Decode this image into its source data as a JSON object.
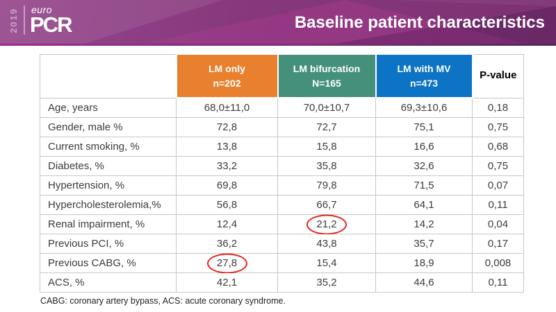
{
  "banner": {
    "year": "2019",
    "logo_euro": "euro",
    "logo_pcr": "PCR",
    "title": "Baseline patient characteristics"
  },
  "colors": {
    "banner_purple": "#87387D",
    "orange": "#E8802E",
    "teal": "#44907B",
    "blue": "#0D73C4",
    "highlight_red": "#E2231A",
    "grid_gray": "#C6C6C6"
  },
  "table": {
    "header": {
      "col1": "",
      "groups": [
        {
          "label": "LM only",
          "sub": "n=202",
          "color": "#E8802E"
        },
        {
          "label": "LM bifurcation",
          "sub": "N=165",
          "color": "#44907B"
        },
        {
          "label": "LM with MV",
          "sub": "n=473",
          "color": "#0D73C4"
        }
      ],
      "pvalue": "P-value"
    },
    "rows": [
      {
        "label": "Age, years",
        "values": [
          "68,0±11,0",
          "70,0±10,7",
          "69,3±10,6",
          "0,18"
        ]
      },
      {
        "label": "Gender, male %",
        "values": [
          "72,8",
          "72,7",
          "75,1",
          "0,75"
        ]
      },
      {
        "label": "Current smoking, %",
        "values": [
          "13,8",
          "15,8",
          "16,6",
          "0,68"
        ]
      },
      {
        "label": "Diabetes, %",
        "values": [
          "33,2",
          "35,8",
          "32,6",
          "0,75"
        ]
      },
      {
        "label": "Hypertension, %",
        "values": [
          "69,8",
          "79,8",
          "71,5",
          "0,07"
        ]
      },
      {
        "label": "Hypercholesterolemia,%",
        "values": [
          "56,8",
          "66,7",
          "64,1",
          "0,11"
        ]
      },
      {
        "label": "Renal impairment, %",
        "values": [
          "12,4",
          "21,2",
          "14,2",
          "0,04"
        ]
      },
      {
        "label": "Previous PCI, %",
        "values": [
          "36,2",
          "43,8",
          "35,7",
          "0,17"
        ]
      },
      {
        "label": "Previous CABG, %",
        "values": [
          "27,8",
          "15,4",
          "18,9",
          "0,008"
        ]
      },
      {
        "label": "ACS, %",
        "values": [
          "42,1",
          "35,2",
          "44,6",
          "0,11"
        ]
      }
    ],
    "highlights": [
      {
        "row": "Renal impairment, %",
        "column": "LM bifurcation",
        "value": "21,2"
      },
      {
        "row": "Previous CABG, %",
        "column": "LM only",
        "value": "27,8"
      }
    ]
  },
  "footnote": "CABG: coronary artery bypass, ACS: acute coronary syndrome."
}
